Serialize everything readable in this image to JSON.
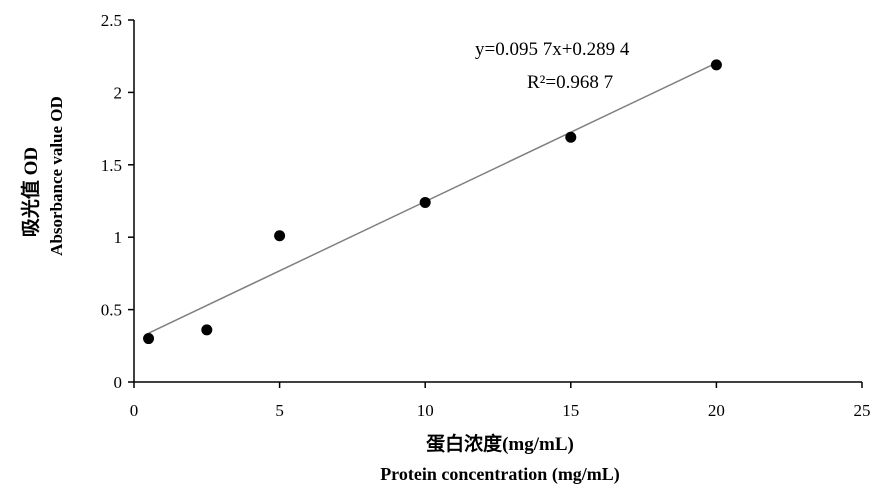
{
  "chart_data": {
    "type": "scatter",
    "title": "",
    "xlabel_cn": "蛋白浓度(mg/mL)",
    "xlabel_en": "Protein concentration (mg/mL)",
    "ylabel_cn": "吸光值 OD",
    "ylabel_en": "Absorbance value OD",
    "xlim": [
      0,
      25
    ],
    "ylim": [
      0,
      2.5
    ],
    "xticks": [
      "0",
      "5",
      "10",
      "15",
      "20",
      "25"
    ],
    "yticks": [
      "0",
      "0.5",
      "1",
      "1.5",
      "2",
      "2.5"
    ],
    "points": [
      {
        "x": 0.5,
        "y": 0.3
      },
      {
        "x": 2.5,
        "y": 0.36
      },
      {
        "x": 5,
        "y": 1.01
      },
      {
        "x": 10,
        "y": 1.24
      },
      {
        "x": 15,
        "y": 1.69
      },
      {
        "x": 20,
        "y": 2.19
      }
    ],
    "trendline": {
      "slope": 0.0957,
      "intercept": 0.2894,
      "x_range": [
        0.5,
        20
      ]
    },
    "equation_text": "y=0.095 7x+0.289 4",
    "r2_text": "R²=0.968 7",
    "grid": false,
    "legend": "none",
    "marker_color": "#000000",
    "trendline_color": "#808080"
  }
}
